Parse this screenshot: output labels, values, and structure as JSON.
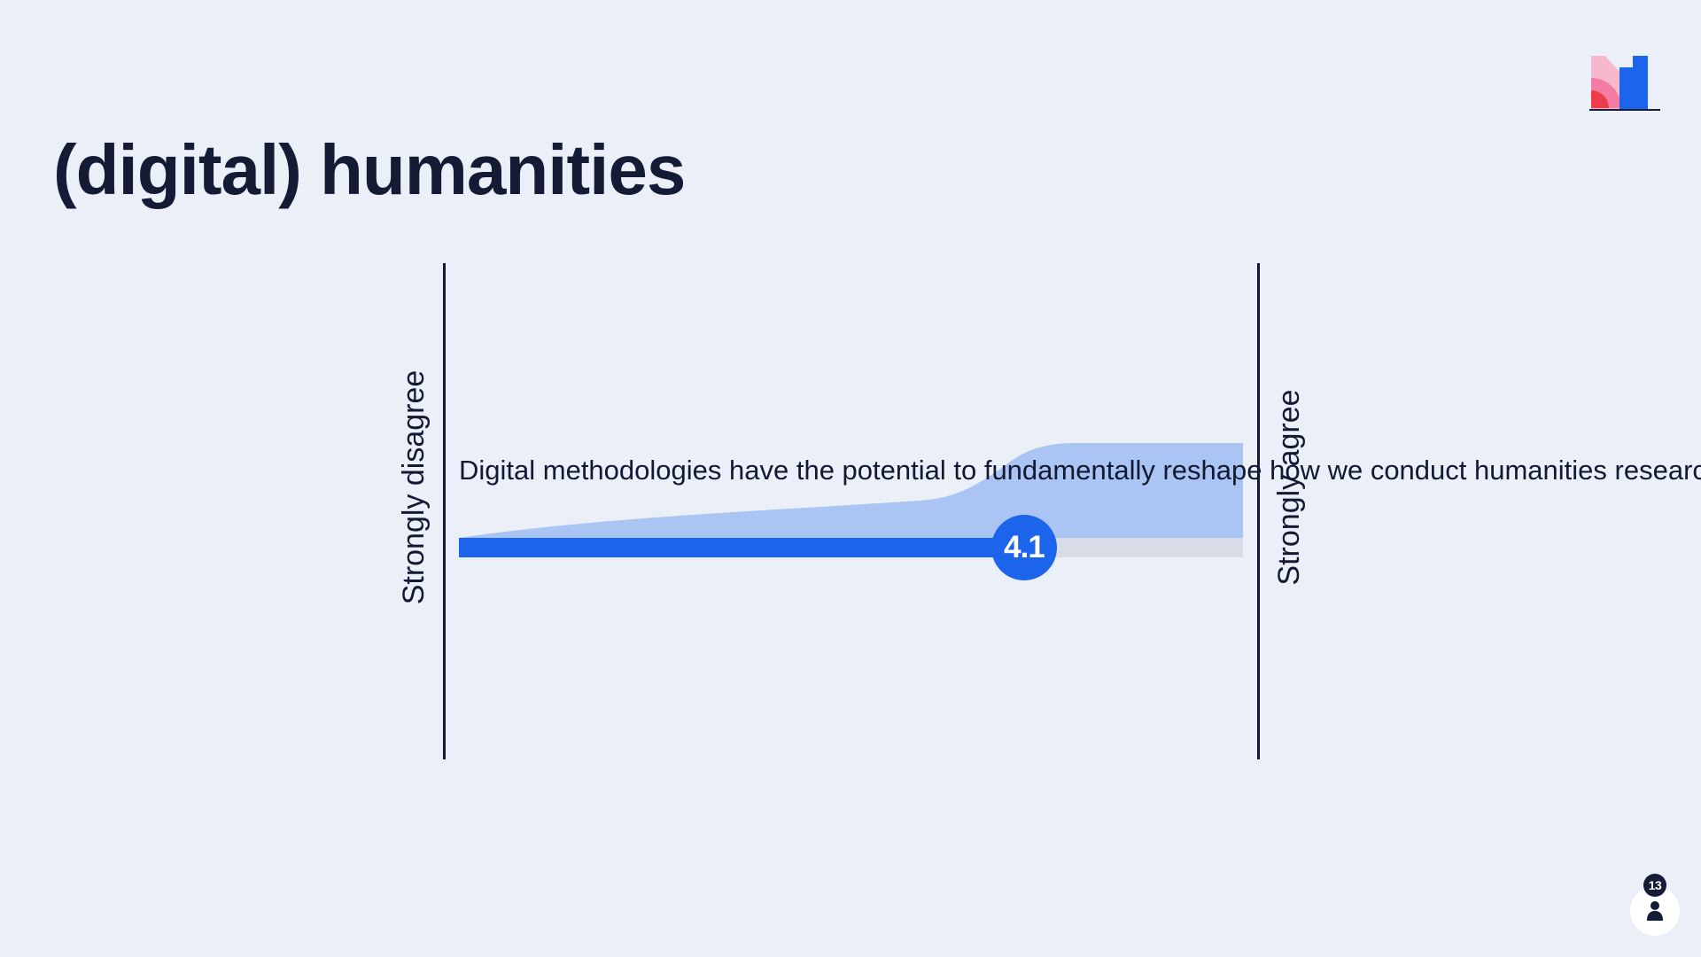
{
  "slide": {
    "title": "(digital) humanities"
  },
  "scale": {
    "left_label": "Strongly disagree",
    "right_label": "Strongly agree",
    "statement": "Digital methodologies have the potential to fundamentally reshape how we conduct humanities research.",
    "average_display": "4.1",
    "average_value": 4.1,
    "min_value": 1,
    "max_value": 5
  },
  "participants": {
    "count": "13",
    "icon": "person-icon"
  },
  "logo": {
    "icon": "mentimeter-logo"
  },
  "colors": {
    "background": "#eaeff8",
    "accent": "#1c64ec",
    "distribution": "#aac4f3",
    "track": "#d7dce6",
    "text": "#121a33"
  }
}
